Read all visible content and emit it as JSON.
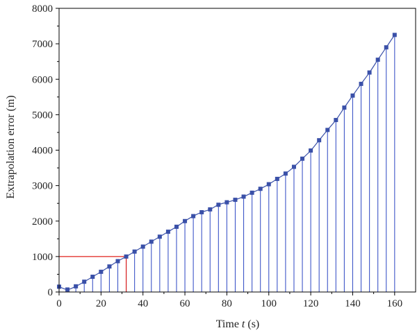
{
  "chart_data": {
    "type": "line",
    "xlabel": {
      "prefix": "Time ",
      "var": "t",
      "suffix": " (s)"
    },
    "ylabel": "Extrapolation error (m)",
    "xlim": [
      0,
      170
    ],
    "ylim": [
      0,
      8000
    ],
    "xticks": [
      0,
      20,
      40,
      60,
      80,
      100,
      120,
      140,
      160
    ],
    "yticks": [
      0,
      1000,
      2000,
      3000,
      4000,
      5000,
      6000,
      7000,
      8000
    ],
    "grid": false,
    "series": [
      {
        "color": "#3a50a8",
        "stem_color": "#3e56c8",
        "marker": "square",
        "x": [
          0,
          4,
          8,
          12,
          16,
          20,
          24,
          28,
          32,
          36,
          40,
          44,
          48,
          52,
          56,
          60,
          64,
          68,
          72,
          76,
          80,
          84,
          88,
          92,
          96,
          100,
          104,
          108,
          112,
          116,
          120,
          124,
          128,
          132,
          136,
          140,
          144,
          148,
          152,
          156,
          160
        ],
        "y": [
          150,
          70,
          160,
          290,
          430,
          570,
          720,
          870,
          1000,
          1140,
          1280,
          1420,
          1560,
          1700,
          1840,
          2000,
          2140,
          2250,
          2330,
          2460,
          2530,
          2600,
          2690,
          2800,
          2910,
          3040,
          3190,
          3340,
          3530,
          3760,
          3990,
          4280,
          4570,
          4850,
          5200,
          5540,
          5870,
          6190,
          6550,
          6900,
          7250
        ]
      }
    ],
    "annotations": [
      {
        "type": "guide",
        "color": "#e0201c",
        "x": 32,
        "y": 1000
      }
    ]
  }
}
